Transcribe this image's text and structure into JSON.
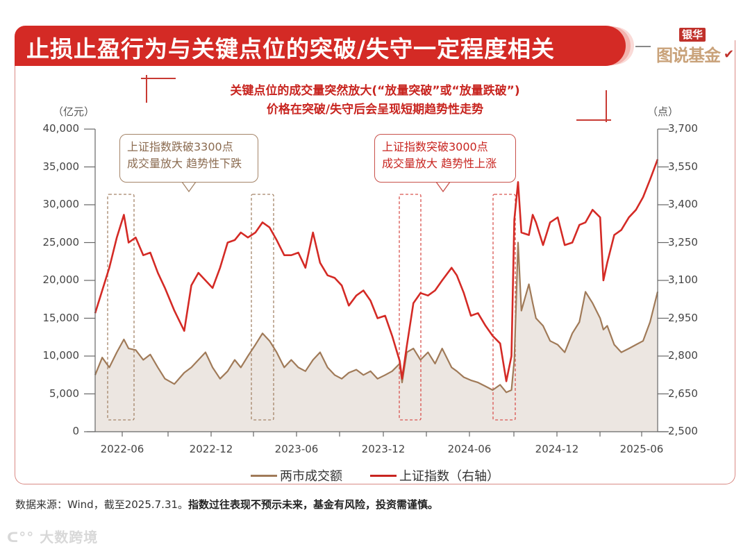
{
  "header": {
    "title": "止损止盈行为与关键点位的突破/失守一定程度相关",
    "brand_top": "银华",
    "brand_bottom": "图说基金",
    "brand_check": "✔"
  },
  "subtitle": {
    "line1": "关键点位的成交量突然放大(“放量突破”或“放量跌破”)",
    "line2": "价格在突破/失守后会呈现短期趋势性走势"
  },
  "axes": {
    "left_unit": "（亿元）",
    "right_unit": "（点）",
    "left_ticks": [
      "40,000",
      "35,000",
      "30,000",
      "25,000",
      "20,000",
      "15,000",
      "10,000",
      "5,000",
      "0"
    ],
    "right_ticks": [
      "3,700",
      "3,550",
      "3,400",
      "3,250",
      "3,100",
      "2,950",
      "2,800",
      "2,650",
      "2,500"
    ],
    "x_ticks": [
      "2022-06",
      "2022-12",
      "2023-06",
      "2023-12",
      "2024-06",
      "2024-12",
      "2025-06"
    ]
  },
  "callouts": {
    "left": {
      "line1": "上证指数跌破3300点",
      "line2": "成交量放大 趋势性下跌"
    },
    "right": {
      "line1": "上证指数突破3000点",
      "line2": "成交量放大 趋势性上涨"
    }
  },
  "legend": {
    "turnover": "两市成交额",
    "index": "上证指数（右轴）"
  },
  "colors": {
    "turnover": "#a07a58",
    "turnover_fill": "#ece6e1",
    "index": "#d42a25",
    "title_bg": "#d42a25",
    "brown_box": "#a48468",
    "red_box": "#d9534f"
  },
  "footer": {
    "source": "数据来源：Wind，截至2025.7.31。",
    "disclaimer": "指数过往表现不预示未来，基金有风险，投资需谨慎。"
  },
  "watermark": "大数跨境",
  "chart_data": {
    "type": "line",
    "title": "止损止盈行为与关键点位的突破/失守一定程度相关",
    "subtitle": "关键点位的成交量突然放大(“放量突破”或“放量跌破”)价格在突破/失守后会呈现短期趋势性走势",
    "xlabel": "",
    "ylabel": "亿元",
    "ylabel_right": "点",
    "ylim": [
      0,
      40000
    ],
    "ylim_right": [
      2500,
      3700
    ],
    "grid": false,
    "legend_position": "bottom",
    "x": [
      "2022-04-25",
      "2022-05-10",
      "2022-05-25",
      "2022-06-10",
      "2022-06-25",
      "2022-07-05",
      "2022-07-20",
      "2022-08-05",
      "2022-08-20",
      "2022-09-05",
      "2022-09-20",
      "2022-10-10",
      "2022-10-31",
      "2022-11-15",
      "2022-11-30",
      "2022-12-15",
      "2022-12-30",
      "2023-01-15",
      "2023-01-31",
      "2023-02-15",
      "2023-02-28",
      "2023-03-15",
      "2023-03-31",
      "2023-04-15",
      "2023-04-30",
      "2023-05-15",
      "2023-05-31",
      "2023-06-15",
      "2023-06-30",
      "2023-07-15",
      "2023-07-31",
      "2023-08-15",
      "2023-08-31",
      "2023-09-15",
      "2023-09-30",
      "2023-10-15",
      "2023-10-31",
      "2023-11-15",
      "2023-11-30",
      "2023-12-15",
      "2023-12-31",
      "2024-01-15",
      "2024-01-31",
      "2024-02-05",
      "2024-02-15",
      "2024-02-29",
      "2024-03-15",
      "2024-03-31",
      "2024-04-15",
      "2024-04-30",
      "2024-05-20",
      "2024-05-31",
      "2024-06-15",
      "2024-06-30",
      "2024-07-15",
      "2024-07-31",
      "2024-08-15",
      "2024-08-31",
      "2024-09-13",
      "2024-09-24",
      "2024-09-30",
      "2024-10-08",
      "2024-10-15",
      "2024-10-31",
      "2024-11-08",
      "2024-11-15",
      "2024-11-30",
      "2024-12-15",
      "2024-12-31",
      "2025-01-15",
      "2025-01-31",
      "2025-02-15",
      "2025-02-28",
      "2025-03-15",
      "2025-03-31",
      "2025-04-07",
      "2025-04-15",
      "2025-04-30",
      "2025-05-15",
      "2025-05-31",
      "2025-06-15",
      "2025-06-30",
      "2025-07-15",
      "2025-07-31"
    ],
    "series": [
      {
        "name": "两市成交额",
        "axis": "left",
        "unit": "亿元",
        "values": [
          7500,
          9800,
          8500,
          10500,
          12200,
          11000,
          10800,
          9500,
          10200,
          8500,
          7000,
          6300,
          7800,
          8500,
          9500,
          10500,
          8500,
          7000,
          8000,
          9500,
          8500,
          10000,
          11500,
          13000,
          12000,
          10500,
          8500,
          9500,
          8500,
          8000,
          9500,
          10500,
          8500,
          7500,
          7000,
          7800,
          8200,
          7500,
          8000,
          7000,
          7500,
          8000,
          9000,
          6500,
          10500,
          11000,
          9500,
          10500,
          9000,
          11000,
          8500,
          8000,
          7200,
          6800,
          6500,
          6000,
          5500,
          6200,
          5200,
          5500,
          9500,
          25000,
          16000,
          19500,
          17000,
          15000,
          14000,
          12000,
          11500,
          10500,
          13000,
          14500,
          18500,
          17000,
          15000,
          13500,
          14000,
          11500,
          10500,
          11000,
          11500,
          12000,
          14500,
          18500
        ]
      },
      {
        "name": "上证指数（右轴）",
        "axis": "right",
        "unit": "点",
        "values": [
          2970,
          3060,
          3150,
          3270,
          3360,
          3250,
          3270,
          3200,
          3210,
          3130,
          3070,
          2980,
          2900,
          3080,
          3130,
          3100,
          3070,
          3150,
          3250,
          3260,
          3290,
          3270,
          3290,
          3330,
          3310,
          3260,
          3200,
          3200,
          3210,
          3150,
          3290,
          3170,
          3120,
          3110,
          3080,
          3000,
          3040,
          3060,
          3020,
          2950,
          2960,
          2880,
          2780,
          2710,
          2840,
          3010,
          3050,
          3040,
          3060,
          3100,
          3150,
          3120,
          3050,
          2960,
          2970,
          2920,
          2880,
          2850,
          2700,
          2800,
          3340,
          3490,
          3290,
          3280,
          3360,
          3330,
          3240,
          3330,
          3350,
          3240,
          3250,
          3320,
          3330,
          3380,
          3350,
          3100,
          3170,
          3280,
          3300,
          3350,
          3380,
          3430,
          3500,
          3580
        ]
      }
    ],
    "annotations": [
      {
        "text": "上证指数跌破3300点 成交量放大 趋势性下跌",
        "color": "brown",
        "highlight_periods": [
          "2022-05 ~ 2022-07",
          "2023-04 ~ 2023-05"
        ]
      },
      {
        "text": "上证指数突破3000点 成交量放大 趋势性上涨",
        "color": "red",
        "highlight_periods": [
          "2024-01 ~ 2024-03",
          "2024-08 ~ 2024-10"
        ]
      }
    ]
  }
}
